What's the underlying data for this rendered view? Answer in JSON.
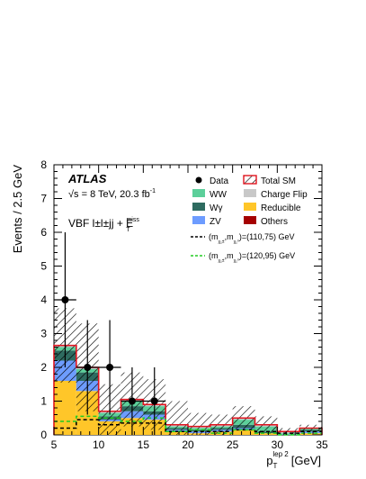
{
  "chart_data": {
    "type": "bar",
    "stacked": true,
    "experiment": "ATLAS",
    "energy_label": "√s = 8 TeV, 20.3 fb",
    "energy_sup": "-1",
    "region_label": "VBF l±l±jj + E",
    "region_sup": "miss",
    "region_sub": "T",
    "xlabel_main": "p",
    "xlabel_sup": "lep 2",
    "xlabel_sub": "T",
    "xlabel_unit": "[GeV]",
    "ylabel": "Events / 2.5 GeV",
    "xlim": [
      5,
      35
    ],
    "ylim": [
      0,
      8
    ],
    "x_ticks": [
      5,
      10,
      15,
      20,
      25,
      30,
      35
    ],
    "y_ticks": [
      0,
      1,
      2,
      3,
      4,
      5,
      6,
      7,
      8
    ],
    "bin_edges": [
      5,
      7.5,
      10,
      12.5,
      15,
      17.5,
      20,
      22.5,
      25,
      27.5,
      30,
      32.5,
      35
    ],
    "legend": [
      {
        "label": "Data",
        "kind": "data"
      },
      {
        "label": "Total SM",
        "kind": "totalsm"
      },
      {
        "label": "WW",
        "kind": "fill",
        "color": "#5ccf9a"
      },
      {
        "label": "Charge Flip",
        "kind": "fill",
        "color": "#c8c8c8"
      },
      {
        "label": "Wγ",
        "kind": "fill",
        "color": "#2e6b60"
      },
      {
        "label": "Reducible",
        "kind": "fill",
        "color": "#ffc629"
      },
      {
        "label": "ZV",
        "kind": "fill",
        "color": "#6d9cff"
      },
      {
        "label": "Others",
        "kind": "fill",
        "color": "#a50000"
      }
    ],
    "signal_legend": [
      {
        "prefix": "(m",
        "sub1": "χ₁±",
        "mid": ",m",
        "sub2": "χ₁⁰",
        "suffix": ")=(110,75) GeV",
        "color": "#000000"
      },
      {
        "prefix": "(m",
        "sub1": "χ₁±",
        "mid": ",m",
        "sub2": "χ₁⁰",
        "suffix": ")=(120,95) GeV",
        "color": "#22cc22"
      }
    ],
    "series": [
      {
        "name": "Reducible",
        "color": "#ffc629",
        "values": [
          1.6,
          1.3,
          0.4,
          0.5,
          0.45,
          0.1,
          0.05,
          0.1,
          0.15,
          0.05,
          0.0,
          0.05
        ]
      },
      {
        "name": "ZV",
        "color": "#6d9cff",
        "values": [
          0.6,
          0.3,
          0.05,
          0.2,
          0.15,
          0.05,
          0.05,
          0.05,
          0.05,
          0.0,
          0.0,
          0.05
        ]
      },
      {
        "name": "Wγ",
        "color": "#2e6b60",
        "values": [
          0.3,
          0.25,
          0.1,
          0.15,
          0.1,
          0.05,
          0.05,
          0.05,
          0.1,
          0.05,
          0.0,
          0.05
        ]
      },
      {
        "name": "WW",
        "color": "#5ccf9a",
        "values": [
          0.1,
          0.1,
          0.1,
          0.15,
          0.15,
          0.05,
          0.05,
          0.05,
          0.15,
          0.15,
          0.05,
          0.05
        ]
      },
      {
        "name": "Charge Flip",
        "color": "#c8c8c8",
        "values": [
          0.05,
          0.05,
          0.05,
          0.05,
          0.05,
          0.05,
          0.05,
          0.05,
          0.05,
          0.05,
          0.05,
          0.0
        ]
      },
      {
        "name": "Others",
        "color": "#a50000",
        "values": [
          0.0,
          0.0,
          0.0,
          0.0,
          0.0,
          0.0,
          0.0,
          0.0,
          0.0,
          0.0,
          0.0,
          0.0
        ]
      }
    ],
    "total_sm": [
      2.65,
      2.0,
      0.7,
      1.05,
      0.9,
      0.3,
      0.25,
      0.3,
      0.5,
      0.3,
      0.1,
      0.2
    ],
    "total_sm_uncertainty": [
      1.1,
      1.3,
      0.8,
      0.8,
      0.75,
      0.7,
      0.4,
      0.3,
      0.35,
      0.25,
      0.1,
      0.1
    ],
    "data": {
      "x": [
        6.25,
        8.75,
        11.25,
        13.75,
        16.25
      ],
      "y": [
        4,
        2,
        2,
        1,
        1
      ],
      "err_low": [
        2.0,
        1.4,
        1.4,
        1.0,
        1.0
      ],
      "err_high": [
        2.0,
        1.4,
        1.4,
        1.0,
        1.0
      ]
    },
    "signals": [
      {
        "name": "(110,75) GeV",
        "color": "#000000",
        "values": [
          0.2,
          0.45,
          0.3,
          0.35,
          0.35,
          0.1,
          0.1,
          0.1,
          0.15,
          0.1,
          0.05,
          0.1
        ]
      },
      {
        "name": "(120,95) GeV",
        "color": "#22cc22",
        "values": [
          0.4,
          0.55,
          0.5,
          0.4,
          0.5,
          0.1,
          0.15,
          0.05,
          0.15,
          0.05,
          0.0,
          0.05
        ]
      }
    ]
  }
}
